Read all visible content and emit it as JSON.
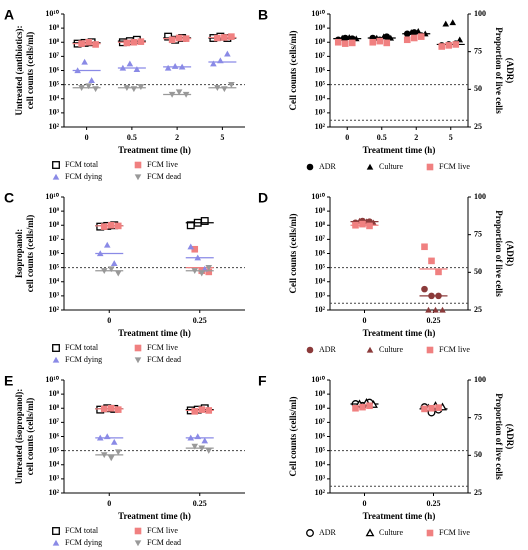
{
  "chart_data": [
    {
      "type": "scatter",
      "panel": "A",
      "log": true,
      "ylabel": [
        "Untreated (antibiotics):",
        "cell counts (cells/ml)"
      ],
      "xlabel": "Treatment time (h)",
      "categories": [
        "0",
        "0.5",
        "2",
        "5"
      ],
      "ylim": [
        100,
        10000000000
      ],
      "yticks": [
        {
          "value": 100,
          "label": "10²"
        },
        {
          "value": 1000,
          "label": "10³"
        },
        {
          "value": 10000,
          "label": "10⁴"
        },
        {
          "value": 100000,
          "label": "10⁵"
        },
        {
          "value": 1000000,
          "label": "10⁶"
        },
        {
          "value": 10000000,
          "label": "10⁷"
        },
        {
          "value": 100000000,
          "label": "10⁸"
        },
        {
          "value": 1000000000,
          "label": "10⁹"
        },
        {
          "value": 10000000000,
          "label": "10¹⁰"
        }
      ],
      "reflines": [
        100000
      ],
      "series": [
        {
          "name": "FCM total",
          "color": "#000000",
          "marker": "square-open",
          "values": [
            [
              80000000,
              90000000,
              100000000
            ],
            [
              100000000,
              120000000,
              150000000
            ],
            [
              250000000,
              150000000,
              200000000
            ],
            [
              200000000,
              250000000,
              200000000
            ]
          ],
          "medians": [
            90000000,
            120000000,
            200000000,
            200000000
          ]
        },
        {
          "name": "FCM live",
          "color": "#f08080",
          "marker": "square",
          "values": [
            [
              80000000,
              100000000,
              70000000
            ],
            [
              90000000,
              100000000,
              110000000
            ],
            [
              150000000,
              200000000,
              180000000
            ],
            [
              200000000,
              220000000,
              250000000
            ]
          ],
          "medians": [
            80000000,
            100000000,
            180000000,
            220000000
          ]
        },
        {
          "name": "FCM dying",
          "color": "#8a8ae6",
          "marker": "triangle",
          "values": [
            [
              1000000,
              4000000,
              200000
            ],
            [
              1500000,
              3000000,
              1200000
            ],
            [
              1500000,
              2000000,
              1800000
            ],
            [
              3000000,
              5000000,
              15000000
            ]
          ],
          "medians": [
            1000000,
            1500000,
            1800000,
            4000000
          ]
        },
        {
          "name": "FCM dead",
          "color": "#999999",
          "marker": "triangle-down",
          "values": [
            [
              60000,
              80000,
              50000
            ],
            [
              60000,
              50000,
              70000
            ],
            [
              20000,
              30000,
              20000
            ],
            [
              60000,
              50000,
              100000
            ]
          ],
          "medians": [
            60000,
            60000,
            20000,
            60000
          ]
        }
      ]
    },
    {
      "type": "scatter",
      "panel": "B",
      "log": true,
      "ylabel": [
        "Cell counts (cells/ml)"
      ],
      "y2label": [
        "Proportion of live cells",
        "(ADR)"
      ],
      "xlabel": "Treatment time (h)",
      "categories": [
        "0",
        "0.5",
        "2",
        "5"
      ],
      "ylim": [
        100,
        10000000000
      ],
      "yticks": [
        {
          "value": 100,
          "label": "10²"
        },
        {
          "value": 1000,
          "label": "10³"
        },
        {
          "value": 10000,
          "label": "10⁴"
        },
        {
          "value": 100000,
          "label": "10⁵"
        },
        {
          "value": 1000000,
          "label": "10⁶"
        },
        {
          "value": 10000000,
          "label": "10⁷"
        },
        {
          "value": 100000000,
          "label": "10⁸"
        },
        {
          "value": 1000000000,
          "label": "10⁹"
        },
        {
          "value": 10000000000,
          "label": "10¹⁰"
        }
      ],
      "y2lim": [
        25,
        100
      ],
      "y2ticks": [
        25,
        50,
        75,
        100
      ],
      "reflines": [
        100000,
        300
      ],
      "series": [
        {
          "name": "ADR",
          "color": "#000000",
          "marker": "circle",
          "values": [
            [
              150000000,
              200000000,
              180000000
            ],
            [
              200000000,
              150000000,
              250000000
            ],
            [
              400000000,
              500000000,
              300000000
            ],
            [
              60000000,
              70000000,
              80000000
            ]
          ],
          "medians": [
            180000000,
            200000000,
            400000000,
            70000000
          ]
        },
        {
          "name": "Culture",
          "color": "#000000",
          "marker": "triangle",
          "values": [
            [
              200000000,
              220000000,
              180000000
            ],
            [
              200000000,
              250000000,
              200000000
            ],
            [
              500000000,
              600000000,
              400000000
            ],
            [
              2000000000,
              2500000000,
              150000000
            ]
          ]
        },
        {
          "name": "FCM live",
          "color": "#f08080",
          "marker": "square",
          "values": [
            [
              100000000,
              80000000,
              90000000
            ],
            [
              100000000,
              120000000,
              90000000
            ],
            [
              150000000,
              200000000,
              250000000
            ],
            [
              50000000,
              60000000,
              70000000
            ]
          ]
        }
      ]
    },
    {
      "type": "scatter",
      "panel": "C",
      "log": true,
      "ylabel": [
        "Isopropanol:",
        "cell counts (cells/ml)"
      ],
      "xlabel": "Treatment time (h)",
      "categories": [
        "0",
        "0.25"
      ],
      "ylim": [
        100,
        10000000000
      ],
      "yticks": [
        {
          "value": 100,
          "label": "10²"
        },
        {
          "value": 1000,
          "label": "10³"
        },
        {
          "value": 10000,
          "label": "10⁴"
        },
        {
          "value": 100000,
          "label": "10⁵"
        },
        {
          "value": 1000000,
          "label": "10⁶"
        },
        {
          "value": 10000000,
          "label": "10⁷"
        },
        {
          "value": 100000000,
          "label": "10⁸"
        },
        {
          "value": 1000000000,
          "label": "10⁹"
        },
        {
          "value": 10000000000,
          "label": "10¹⁰"
        }
      ],
      "reflines": [
        100000
      ],
      "series": [
        {
          "name": "FCM total",
          "color": "#000000",
          "marker": "square-open",
          "values": [
            [
              80000000,
              90000000,
              100000000
            ],
            [
              100000000,
              150000000,
              200000000
            ]
          ],
          "medians": [
            90000000,
            150000000
          ]
        },
        {
          "name": "FCM live",
          "color": "#f08080",
          "marker": "square",
          "values": [
            [
              80000000,
              100000000,
              90000000
            ],
            [
              2000000,
              60000,
              50000
            ]
          ],
          "medians": [
            90000000,
            100000
          ]
        },
        {
          "name": "FCM dying",
          "color": "#8a8ae6",
          "marker": "triangle",
          "values": [
            [
              1000000,
              4000000,
              200000
            ],
            [
              3000000,
              500000,
              80000
            ]
          ],
          "medians": [
            1000000,
            500000
          ]
        },
        {
          "name": "FCM dead",
          "color": "#999999",
          "marker": "triangle-down",
          "values": [
            [
              60000,
              80000,
              40000
            ],
            [
              60000,
              40000,
              100000
            ]
          ],
          "medians": [
            60000,
            60000
          ]
        }
      ]
    },
    {
      "type": "scatter",
      "panel": "D",
      "log": true,
      "ylabel": [
        "Cell counts (cells/ml)"
      ],
      "y2label": [
        "Proportion of live cells",
        "(ADR)"
      ],
      "xlabel": "Treatment time (h)",
      "categories": [
        "0",
        "0.25"
      ],
      "ylim": [
        100,
        10000000000
      ],
      "yticks": [
        {
          "value": 100,
          "label": "10²"
        },
        {
          "value": 1000,
          "label": "10³"
        },
        {
          "value": 10000,
          "label": "10⁴"
        },
        {
          "value": 100000,
          "label": "10⁵"
        },
        {
          "value": 1000000,
          "label": "10⁶"
        },
        {
          "value": 10000000,
          "label": "10⁷"
        },
        {
          "value": 100000000,
          "label": "10⁸"
        },
        {
          "value": 1000000000,
          "label": "10⁹"
        },
        {
          "value": 10000000000,
          "label": "10¹⁰"
        }
      ],
      "y2lim": [
        25,
        100
      ],
      "y2ticks": [
        25,
        50,
        75,
        100
      ],
      "reflines": [
        100000,
        300
      ],
      "series": [
        {
          "name": "ADR",
          "color": "#8b3a3a",
          "marker": "circle",
          "values": [
            [
              150000000,
              200000000,
              180000000
            ],
            [
              3000,
              1000,
              1000
            ]
          ],
          "medians": [
            180000000,
            1000
          ]
        },
        {
          "name": "Culture",
          "color": "#8b3a3a",
          "marker": "triangle",
          "values": [
            [
              200000000,
              180000000,
              150000000
            ],
            [
              100,
              100,
              100
            ]
          ]
        },
        {
          "name": "FCM live",
          "color": "#f08080",
          "marker": "square",
          "values": [
            [
              100000000,
              120000000,
              90000000
            ],
            [
              3000000,
              300000,
              50000
            ]
          ],
          "medians": [
            100000000,
            80000
          ]
        }
      ]
    },
    {
      "type": "scatter",
      "panel": "E",
      "log": true,
      "ylabel": [
        "Untreated (isopropanol):",
        "cell counts (cells/ml)"
      ],
      "xlabel": "Treatment time (h)",
      "categories": [
        "0",
        "0.25"
      ],
      "ylim": [
        100,
        10000000000
      ],
      "yticks": [
        {
          "value": 100,
          "label": "10²"
        },
        {
          "value": 1000,
          "label": "10³"
        },
        {
          "value": 10000,
          "label": "10⁴"
        },
        {
          "value": 100000,
          "label": "10⁵"
        },
        {
          "value": 1000000,
          "label": "10⁶"
        },
        {
          "value": 10000000,
          "label": "10⁷"
        },
        {
          "value": 100000000,
          "label": "10⁸"
        },
        {
          "value": 1000000000,
          "label": "10⁹"
        },
        {
          "value": 10000000000,
          "label": "10¹⁰"
        }
      ],
      "reflines": [
        100000
      ],
      "series": [
        {
          "name": "FCM total",
          "color": "#000000",
          "marker": "square-open",
          "values": [
            [
              80000000,
              100000000,
              90000000
            ],
            [
              70000000,
              80000000,
              100000000
            ]
          ],
          "medians": [
            90000000,
            80000000
          ]
        },
        {
          "name": "FCM live",
          "color": "#f08080",
          "marker": "square",
          "values": [
            [
              90000000,
              100000000,
              80000000
            ],
            [
              60000000,
              80000000,
              70000000
            ]
          ],
          "medians": [
            90000000,
            70000000
          ]
        },
        {
          "name": "FCM dying",
          "color": "#8a8ae6",
          "marker": "triangle",
          "values": [
            [
              800000,
              1000000,
              400000
            ],
            [
              800000,
              1000000,
              500000
            ]
          ],
          "medians": [
            800000,
            800000
          ]
        },
        {
          "name": "FCM dead",
          "color": "#999999",
          "marker": "triangle-down",
          "values": [
            [
              50000,
              30000,
              80000
            ],
            [
              200000,
              150000,
              100000
            ]
          ],
          "medians": [
            50000,
            150000
          ]
        }
      ]
    },
    {
      "type": "scatter",
      "panel": "F",
      "log": true,
      "ylabel": [
        "Cell counts (cells/ml)"
      ],
      "y2label": [
        "Proportion of live cells",
        "(ADR)"
      ],
      "xlabel": "Treatment time (h)",
      "categories": [
        "0",
        "0.25"
      ],
      "ylim": [
        100,
        10000000000
      ],
      "yticks": [
        {
          "value": 100,
          "label": "10²"
        },
        {
          "value": 1000,
          "label": "10³"
        },
        {
          "value": 10000,
          "label": "10⁴"
        },
        {
          "value": 100000,
          "label": "10⁵"
        },
        {
          "value": 1000000,
          "label": "10⁶"
        },
        {
          "value": 10000000,
          "label": "10⁷"
        },
        {
          "value": 100000000,
          "label": "10⁸"
        },
        {
          "value": 1000000000,
          "label": "10⁹"
        },
        {
          "value": 10000000000,
          "label": "10¹⁰"
        }
      ],
      "y2lim": [
        25,
        100
      ],
      "y2ticks": [
        25,
        50,
        75,
        100
      ],
      "reflines": [
        100000,
        300
      ],
      "series": [
        {
          "name": "ADR",
          "color": "#000000",
          "marker": "circle-open",
          "values": [
            [
              200000000,
              150000000,
              250000000
            ],
            [
              120000000,
              50000000,
              80000000
            ]
          ],
          "medians": [
            200000000,
            90000000
          ]
        },
        {
          "name": "Culture",
          "color": "#000000",
          "marker": "triangle-open",
          "values": [
            [
              200000000,
              250000000,
              180000000
            ],
            [
              100000000,
              150000000,
              120000000
            ]
          ]
        },
        {
          "name": "FCM live",
          "color": "#f08080",
          "marker": "square",
          "values": [
            [
              100000000,
              120000000,
              150000000
            ],
            [
              90000000,
              100000000,
              110000000
            ]
          ]
        }
      ]
    }
  ]
}
